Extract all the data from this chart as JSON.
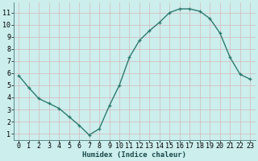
{
  "x": [
    0,
    1,
    2,
    3,
    4,
    5,
    6,
    7,
    8,
    9,
    10,
    11,
    12,
    13,
    14,
    15,
    16,
    17,
    18,
    19,
    20,
    21,
    22,
    23
  ],
  "y": [
    5.8,
    4.8,
    3.9,
    3.5,
    3.1,
    2.4,
    1.7,
    0.9,
    1.4,
    3.3,
    5.0,
    7.3,
    8.7,
    9.5,
    10.2,
    11.0,
    11.3,
    11.3,
    11.1,
    10.5,
    9.3,
    7.3,
    5.9,
    5.5
  ],
  "line_color": "#2d7a6e",
  "marker": "+",
  "marker_size": 3.5,
  "line_width": 1.0,
  "bg_color": "#cceeed",
  "grid_color": "#b8dbd9",
  "xlabel": "Humidex (Indice chaleur)",
  "xlabel_fontsize": 6.5,
  "tick_fontsize": 6,
  "xlim": [
    -0.5,
    23.5
  ],
  "ylim": [
    0.5,
    11.8
  ],
  "yticks": [
    1,
    2,
    3,
    4,
    5,
    6,
    7,
    8,
    9,
    10,
    11
  ],
  "xticks": [
    0,
    1,
    2,
    3,
    4,
    5,
    6,
    7,
    8,
    9,
    10,
    11,
    12,
    13,
    14,
    15,
    16,
    17,
    18,
    19,
    20,
    21,
    22,
    23
  ]
}
